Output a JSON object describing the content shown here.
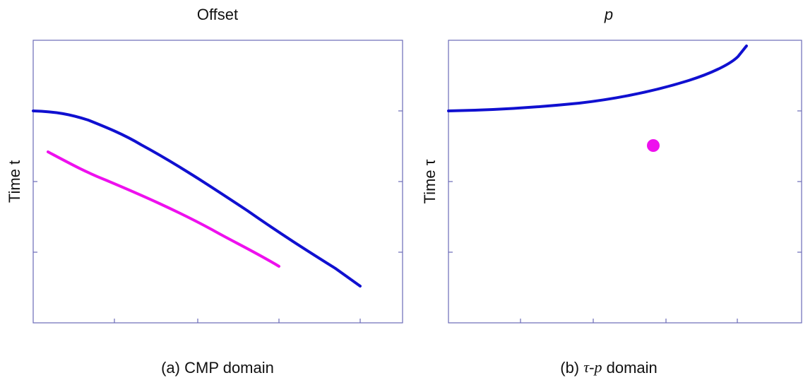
{
  "panels": [
    {
      "title": "Offset",
      "y_label": "Time t",
      "caption": "(a) CMP domain"
    },
    {
      "title": "p",
      "y_label": "Time τ",
      "caption_prefix": "(b)",
      "caption_symbol": "τ-p",
      "caption_suffix": "domain"
    }
  ]
}
